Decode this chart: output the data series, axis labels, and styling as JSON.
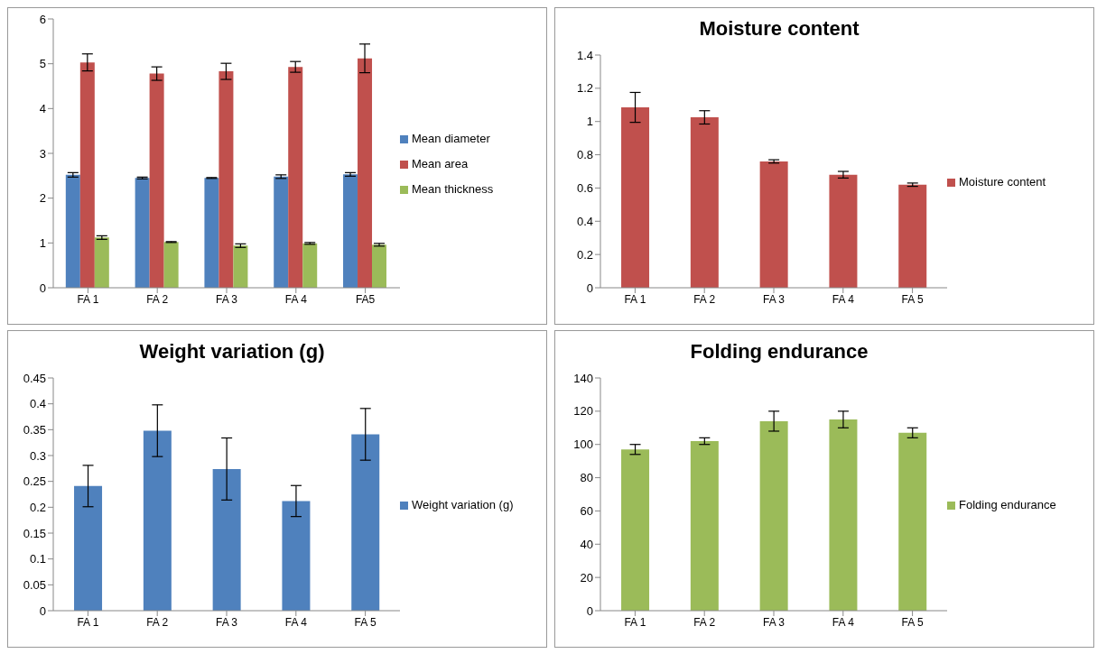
{
  "chart_data": [
    {
      "type": "bar",
      "categories": [
        "FA 1",
        "FA 2",
        "FA 3",
        "FA 4",
        "FA5"
      ],
      "ylim": [
        0,
        6
      ],
      "yticks": [
        0,
        1,
        2,
        3,
        4,
        5,
        6
      ],
      "grid": false,
      "legend": "right",
      "series": [
        {
          "name": "Mean diameter",
          "color": "#4f81bd",
          "values": [
            2.52,
            2.45,
            2.45,
            2.48,
            2.53
          ],
          "errors": [
            0.05,
            0.02,
            0.01,
            0.04,
            0.04
          ]
        },
        {
          "name": "Mean area",
          "color": "#c0504d",
          "values": [
            5.03,
            4.78,
            4.83,
            4.93,
            5.12
          ],
          "errors": [
            0.19,
            0.15,
            0.18,
            0.12,
            0.32
          ]
        },
        {
          "name": "Mean thickness",
          "color": "#9bbb59",
          "values": [
            1.12,
            1.02,
            0.94,
            0.99,
            0.96
          ],
          "errors": [
            0.04,
            0.01,
            0.04,
            0.02,
            0.03
          ]
        }
      ]
    },
    {
      "type": "bar",
      "title": "Moisture content",
      "categories": [
        "FA 1",
        "FA 2",
        "FA 3",
        "FA 4",
        "FA 5"
      ],
      "ylim": [
        0,
        1.4
      ],
      "yticks": [
        0,
        0.2,
        0.4,
        0.6,
        0.8,
        1,
        1.2,
        1.4
      ],
      "grid": false,
      "legend": "right",
      "series": [
        {
          "name": "Moisture content",
          "color": "#c0504d",
          "values": [
            1.085,
            1.025,
            0.76,
            0.68,
            0.62
          ],
          "errors": [
            0.09,
            0.04,
            0.01,
            0.02,
            0.01
          ]
        }
      ]
    },
    {
      "type": "bar",
      "title": "Weight variation (g)",
      "categories": [
        "FA 1",
        "FA 2",
        "FA 3",
        "FA 4",
        "FA 5"
      ],
      "ylim": [
        0,
        0.45
      ],
      "yticks": [
        0,
        0.05,
        0.1,
        0.15,
        0.2,
        0.25,
        0.3,
        0.35,
        0.4,
        0.45
      ],
      "grid": false,
      "legend": "right",
      "series": [
        {
          "name": "Weight variation  (g)",
          "color": "#4f81bd",
          "values": [
            0.241,
            0.348,
            0.274,
            0.212,
            0.341
          ],
          "errors": [
            0.04,
            0.05,
            0.06,
            0.03,
            0.05
          ]
        }
      ]
    },
    {
      "type": "bar",
      "title": "Folding endurance",
      "categories": [
        "FA 1",
        "FA 2",
        "FA 3",
        "FA 4",
        "FA 5"
      ],
      "ylim": [
        0,
        140
      ],
      "yticks": [
        0,
        20,
        40,
        60,
        80,
        100,
        120,
        140
      ],
      "grid": false,
      "legend": "right",
      "series": [
        {
          "name": "Folding endurance",
          "color": "#9bbb59",
          "values": [
            97,
            102,
            114,
            115,
            107
          ],
          "errors": [
            3,
            2,
            6,
            5,
            3
          ]
        }
      ]
    }
  ]
}
